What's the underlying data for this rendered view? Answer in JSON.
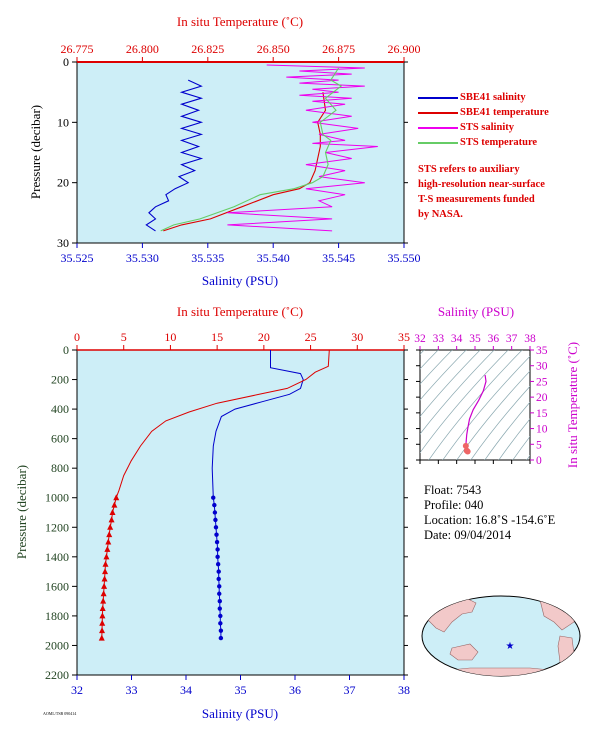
{
  "chart_data": [
    {
      "type": "line",
      "panel": "top",
      "xlabel_top": "In situ Temperature (˚C)",
      "xlabel_bottom": "Salinity (PSU)",
      "ylabel": "Pressure (decibar)",
      "temp_lim": [
        26.775,
        26.9
      ],
      "temp_ticks": [
        "26.775",
        "26.800",
        "26.825",
        "26.850",
        "26.875",
        "26.900"
      ],
      "sal_lim": [
        35.525,
        35.55
      ],
      "sal_ticks": [
        "35.525",
        "35.530",
        "35.535",
        "35.540",
        "35.545",
        "35.550"
      ],
      "ylim": [
        0,
        30
      ],
      "y_ticks": [
        "0",
        "10",
        "20",
        "30"
      ],
      "legend": [
        {
          "name": "SBE41 salinity",
          "color": "#0000cc"
        },
        {
          "name": "SBE41 temperature",
          "color": "#dd0000"
        },
        {
          "name": "STS salinity",
          "color": "#ee00ee"
        },
        {
          "name": "STS temperature",
          "color": "#66cc66"
        }
      ],
      "note": [
        "STS refers to auxiliary",
        "high-resolution near-surface",
        "T-S measurements funded",
        "by NASA."
      ],
      "series": [
        {
          "name": "SBE41 salinity",
          "x_units": "salinity",
          "color": "#0000cc",
          "points": [
            [
              35.5335,
              3
            ],
            [
              35.5345,
              4
            ],
            [
              35.533,
              5
            ],
            [
              35.5345,
              6
            ],
            [
              35.533,
              7
            ],
            [
              35.5343,
              8
            ],
            [
              35.533,
              9
            ],
            [
              35.5345,
              10
            ],
            [
              35.533,
              11
            ],
            [
              35.5345,
              12
            ],
            [
              35.533,
              13
            ],
            [
              35.5343,
              14
            ],
            [
              35.533,
              15
            ],
            [
              35.5345,
              16
            ],
            [
              35.533,
              17
            ],
            [
              35.534,
              18
            ],
            [
              35.5328,
              19
            ],
            [
              35.5335,
              20
            ],
            [
              35.5325,
              21
            ],
            [
              35.5318,
              22
            ],
            [
              35.532,
              23
            ],
            [
              35.531,
              24
            ],
            [
              35.5305,
              25
            ],
            [
              35.531,
              26
            ],
            [
              35.5303,
              27
            ],
            [
              35.531,
              28
            ]
          ]
        },
        {
          "name": "SBE41 temperature",
          "x_units": "temperature",
          "color": "#dd0000",
          "points": [
            [
              26.869,
              5
            ],
            [
              26.87,
              8
            ],
            [
              26.867,
              10
            ],
            [
              26.868,
              12
            ],
            [
              26.868,
              14
            ],
            [
              26.867,
              16
            ],
            [
              26.866,
              18
            ],
            [
              26.864,
              20
            ],
            [
              26.86,
              21
            ],
            [
              26.85,
              22
            ],
            [
              26.838,
              24
            ],
            [
              26.826,
              26
            ],
            [
              26.815,
              27
            ],
            [
              26.808,
              28
            ]
          ]
        },
        {
          "name": "STS salinity",
          "x_units": "salinity",
          "color": "#ee00ee",
          "points": [
            [
              35.5395,
              0.5
            ],
            [
              35.547,
              1
            ],
            [
              35.542,
              1.5
            ],
            [
              35.546,
              2
            ],
            [
              35.541,
              2.5
            ],
            [
              35.545,
              3
            ],
            [
              35.542,
              3.5
            ],
            [
              35.547,
              4
            ],
            [
              35.543,
              4.5
            ],
            [
              35.545,
              5
            ],
            [
              35.542,
              5.5
            ],
            [
              35.546,
              6
            ],
            [
              35.543,
              6.5
            ],
            [
              35.5455,
              7
            ],
            [
              35.5425,
              8
            ],
            [
              35.546,
              9
            ],
            [
              35.543,
              10
            ],
            [
              35.5465,
              11
            ],
            [
              35.5435,
              12
            ],
            [
              35.5455,
              13
            ],
            [
              35.543,
              13.5
            ],
            [
              35.548,
              14
            ],
            [
              35.544,
              15
            ],
            [
              35.546,
              16
            ],
            [
              35.5425,
              17
            ],
            [
              35.5455,
              18
            ],
            [
              35.5435,
              19
            ],
            [
              35.547,
              20
            ],
            [
              35.5425,
              21
            ],
            [
              35.5455,
              22
            ],
            [
              35.5435,
              23
            ],
            [
              35.5445,
              24
            ],
            [
              35.5365,
              25
            ],
            [
              35.5445,
              26
            ],
            [
              35.5365,
              27
            ],
            [
              35.5445,
              28
            ]
          ]
        },
        {
          "name": "STS temperature",
          "x_units": "temperature",
          "color": "#66cc66",
          "points": [
            [
              26.875,
              1
            ],
            [
              26.872,
              3
            ],
            [
              26.876,
              4
            ],
            [
              26.87,
              6
            ],
            [
              26.874,
              8
            ],
            [
              26.868,
              10
            ],
            [
              26.869,
              12
            ],
            [
              26.872,
              13
            ],
            [
              26.87,
              15
            ],
            [
              26.871,
              17
            ],
            [
              26.869,
              19
            ],
            [
              26.865,
              20
            ],
            [
              26.858,
              21
            ],
            [
              26.845,
              22
            ],
            [
              26.835,
              24
            ],
            [
              26.822,
              26
            ],
            [
              26.812,
              27
            ],
            [
              26.807,
              28
            ]
          ]
        }
      ]
    },
    {
      "type": "line",
      "panel": "bottom",
      "xlabel_top": "In situ Temperature (˚C)",
      "xlabel_bottom": "Salinity (PSU)",
      "ylabel": "Pressure (decibar)",
      "temp_lim": [
        0,
        35
      ],
      "temp_ticks": [
        "0",
        "5",
        "10",
        "15",
        "20",
        "25",
        "30",
        "35"
      ],
      "sal_lim": [
        32,
        38
      ],
      "sal_ticks": [
        "32",
        "33",
        "34",
        "35",
        "36",
        "37",
        "38"
      ],
      "ylim": [
        0,
        2200
      ],
      "y_ticks": [
        "0",
        "200",
        "400",
        "600",
        "800",
        "1000",
        "1200",
        "1400",
        "1600",
        "1800",
        "2000",
        "2200"
      ],
      "series": [
        {
          "name": "Salinity",
          "x_units": "salinity",
          "color": "#0000cc",
          "points": [
            [
              35.55,
              0
            ],
            [
              35.55,
              120
            ],
            [
              36.1,
              160
            ],
            [
              36.15,
              200
            ],
            [
              36.1,
              260
            ],
            [
              35.9,
              300
            ],
            [
              35.4,
              350
            ],
            [
              34.9,
              400
            ],
            [
              34.65,
              450
            ],
            [
              34.55,
              550
            ],
            [
              34.5,
              650
            ],
            [
              34.48,
              800
            ],
            [
              34.5,
              1000
            ]
          ],
          "bottle_points": [
            [
              34.5,
              1000
            ],
            [
              34.52,
              1050
            ],
            [
              34.53,
              1100
            ],
            [
              34.54,
              1150
            ],
            [
              34.55,
              1200
            ],
            [
              34.56,
              1250
            ],
            [
              34.57,
              1300
            ],
            [
              34.58,
              1350
            ],
            [
              34.58,
              1400
            ],
            [
              34.59,
              1450
            ],
            [
              34.6,
              1500
            ],
            [
              34.6,
              1550
            ],
            [
              34.61,
              1600
            ],
            [
              34.61,
              1650
            ],
            [
              34.62,
              1700
            ],
            [
              34.62,
              1750
            ],
            [
              34.63,
              1800
            ],
            [
              34.63,
              1850
            ],
            [
              34.64,
              1900
            ],
            [
              34.64,
              1950
            ]
          ]
        },
        {
          "name": "Temperature",
          "x_units": "temperature",
          "color": "#dd0000",
          "points": [
            [
              27.0,
              0
            ],
            [
              26.9,
              110
            ],
            [
              25.5,
              150
            ],
            [
              24.5,
              200
            ],
            [
              22.5,
              260
            ],
            [
              19.5,
              300
            ],
            [
              15.0,
              360
            ],
            [
              12.0,
              420
            ],
            [
              9.5,
              480
            ],
            [
              8.0,
              550
            ],
            [
              6.8,
              650
            ],
            [
              5.8,
              750
            ],
            [
              5.0,
              850
            ],
            [
              4.5,
              950
            ],
            [
              4.2,
              1000
            ]
          ],
          "bottle_points": [
            [
              4.2,
              1000
            ],
            [
              4.0,
              1050
            ],
            [
              3.8,
              1100
            ],
            [
              3.7,
              1150
            ],
            [
              3.55,
              1200
            ],
            [
              3.45,
              1250
            ],
            [
              3.35,
              1300
            ],
            [
              3.25,
              1350
            ],
            [
              3.15,
              1400
            ],
            [
              3.05,
              1450
            ],
            [
              3.0,
              1500
            ],
            [
              2.95,
              1550
            ],
            [
              2.9,
              1600
            ],
            [
              2.85,
              1650
            ],
            [
              2.8,
              1700
            ],
            [
              2.75,
              1750
            ],
            [
              2.72,
              1800
            ],
            [
              2.7,
              1850
            ],
            [
              2.68,
              1900
            ],
            [
              2.65,
              1950
            ]
          ]
        }
      ]
    },
    {
      "type": "scatter",
      "panel": "ts-diagram",
      "xlabel": "Salinity (PSU)",
      "ylabel": "In situ Temperature (˚C)",
      "xlim": [
        32,
        38
      ],
      "ylim": [
        0,
        35
      ],
      "x_ticks": [
        "32",
        "33",
        "34",
        "35",
        "36",
        "37",
        "38"
      ],
      "y_ticks": [
        "0",
        "5",
        "10",
        "15",
        "20",
        "25",
        "30",
        "35"
      ],
      "color": "#cc00cc",
      "points": [
        [
          35.55,
          27
        ],
        [
          35.6,
          25
        ],
        [
          35.45,
          22
        ],
        [
          35.2,
          19
        ],
        [
          34.9,
          16
        ],
        [
          34.7,
          13
        ],
        [
          34.6,
          10
        ],
        [
          34.55,
          8
        ],
        [
          34.52,
          6
        ],
        [
          34.5,
          4.5
        ],
        [
          34.55,
          3
        ],
        [
          34.6,
          2.7
        ]
      ]
    }
  ],
  "info": {
    "float": "Float:  7543",
    "profile": "Profile:  040",
    "location": "Location:  16.8˚S  -154.6˚E",
    "date": "Date:  09/04/2014"
  },
  "map": {
    "marker_color": "#0000cc"
  },
  "footer": {
    "code": "AOML/TSB 090414"
  }
}
